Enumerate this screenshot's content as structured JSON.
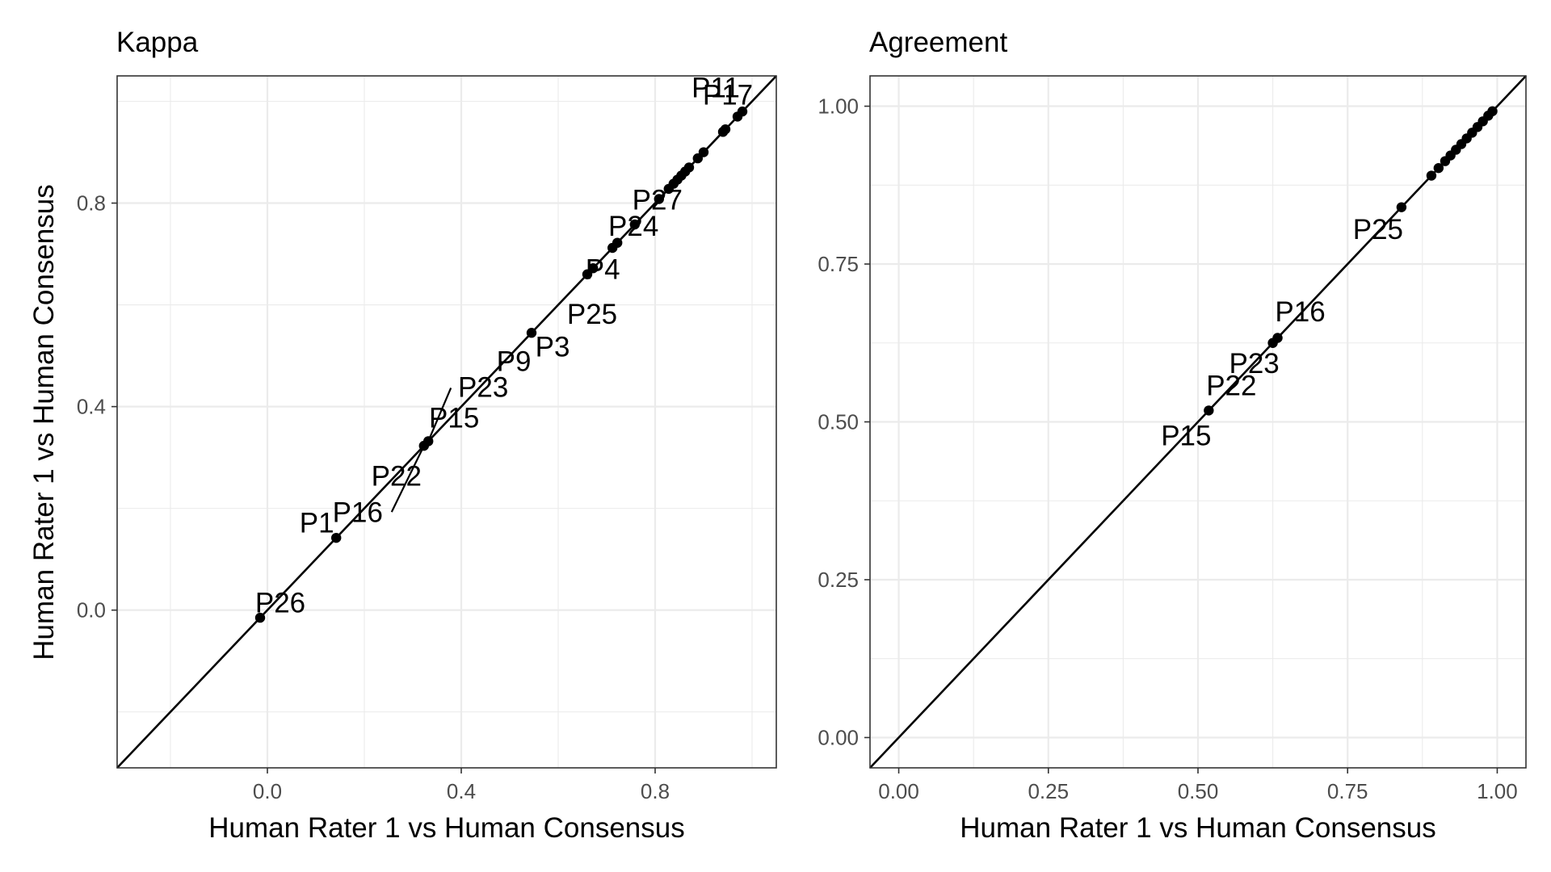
{
  "chart_data": [
    {
      "type": "scatter",
      "title": "Kappa",
      "xlabel": "Human Rater 1 vs Human Consensus",
      "ylabel": "Human Rater 1 vs Human Consensus",
      "xlim": [
        -0.31,
        1.05
      ],
      "ylim": [
        -0.31,
        1.05
      ],
      "xticks": [
        "0.0",
        "0.4",
        "0.8"
      ],
      "xtick_values": [
        0.0,
        0.4,
        0.8
      ],
      "yticks": [
        "0.0",
        "0.4",
        "0.8"
      ],
      "ytick_values": [
        0.0,
        0.4,
        0.8
      ],
      "grid": true,
      "reference_line": "y = x",
      "points": [
        {
          "x": -0.015,
          "y": -0.015
        },
        {
          "x": 0.142,
          "y": 0.142
        },
        {
          "x": 0.323,
          "y": 0.323
        },
        {
          "x": 0.332,
          "y": 0.332
        },
        {
          "x": 0.545,
          "y": 0.545
        },
        {
          "x": 0.66,
          "y": 0.66
        },
        {
          "x": 0.672,
          "y": 0.672
        },
        {
          "x": 0.712,
          "y": 0.712
        },
        {
          "x": 0.722,
          "y": 0.722
        },
        {
          "x": 0.758,
          "y": 0.758
        },
        {
          "x": 0.808,
          "y": 0.808
        },
        {
          "x": 0.828,
          "y": 0.828
        },
        {
          "x": 0.838,
          "y": 0.838
        },
        {
          "x": 0.846,
          "y": 0.846
        },
        {
          "x": 0.854,
          "y": 0.854
        },
        {
          "x": 0.862,
          "y": 0.862
        },
        {
          "x": 0.87,
          "y": 0.87
        },
        {
          "x": 0.888,
          "y": 0.888
        },
        {
          "x": 0.9,
          "y": 0.9
        },
        {
          "x": 0.94,
          "y": 0.94
        },
        {
          "x": 0.945,
          "y": 0.945
        },
        {
          "x": 0.97,
          "y": 0.97
        },
        {
          "x": 0.98,
          "y": 0.98
        }
      ],
      "labels": [
        {
          "text": "P26",
          "x": -0.015,
          "y": -0.015
        },
        {
          "text": "P1",
          "x": 0.142,
          "y": 0.142
        },
        {
          "text": "P16",
          "x": 0.323,
          "y": 0.323
        },
        {
          "text": "P22",
          "x": 0.323,
          "y": 0.323
        },
        {
          "text": "P15",
          "x": 0.332,
          "y": 0.332
        },
        {
          "text": "P23",
          "x": 0.332,
          "y": 0.332
        },
        {
          "text": "P9",
          "x": 0.545,
          "y": 0.545
        },
        {
          "text": "P3",
          "x": 0.545,
          "y": 0.545
        },
        {
          "text": "P25",
          "x": 0.66,
          "y": 0.66
        },
        {
          "text": "P4",
          "x": 0.672,
          "y": 0.672
        },
        {
          "text": "P24",
          "x": 0.722,
          "y": 0.722
        },
        {
          "text": "P27",
          "x": 0.758,
          "y": 0.758
        },
        {
          "text": "P11",
          "x": 0.97,
          "y": 0.97
        },
        {
          "text": "P17",
          "x": 0.98,
          "y": 0.98
        }
      ]
    },
    {
      "type": "scatter",
      "title": "Agreement",
      "xlabel": "Human Rater 1 vs Human Consensus",
      "ylabel": "",
      "xlim": [
        -0.048,
        1.048
      ],
      "ylim": [
        -0.048,
        1.048
      ],
      "xticks": [
        "0.00",
        "0.25",
        "0.50",
        "0.75",
        "1.00"
      ],
      "xtick_values": [
        0.0,
        0.25,
        0.5,
        0.75,
        1.0
      ],
      "yticks": [
        "0.00",
        "0.25",
        "0.50",
        "0.75",
        "1.00"
      ],
      "ytick_values": [
        0.0,
        0.25,
        0.5,
        0.75,
        1.0
      ],
      "grid": true,
      "reference_line": "y = x",
      "points": [
        {
          "x": 0.518,
          "y": 0.518
        },
        {
          "x": 0.625,
          "y": 0.625
        },
        {
          "x": 0.633,
          "y": 0.633
        },
        {
          "x": 0.84,
          "y": 0.84
        },
        {
          "x": 0.89,
          "y": 0.89
        },
        {
          "x": 0.902,
          "y": 0.902
        },
        {
          "x": 0.913,
          "y": 0.913
        },
        {
          "x": 0.922,
          "y": 0.922
        },
        {
          "x": 0.931,
          "y": 0.931
        },
        {
          "x": 0.94,
          "y": 0.94
        },
        {
          "x": 0.949,
          "y": 0.949
        },
        {
          "x": 0.958,
          "y": 0.958
        },
        {
          "x": 0.967,
          "y": 0.967
        },
        {
          "x": 0.976,
          "y": 0.976
        },
        {
          "x": 0.985,
          "y": 0.985
        },
        {
          "x": 0.992,
          "y": 0.992
        }
      ],
      "labels": [
        {
          "text": "P15",
          "x": 0.518,
          "y": 0.518
        },
        {
          "text": "P22",
          "x": 0.518,
          "y": 0.518
        },
        {
          "text": "P23",
          "x": 0.625,
          "y": 0.625
        },
        {
          "text": "P16",
          "x": 0.633,
          "y": 0.633
        },
        {
          "text": "P25",
          "x": 0.84,
          "y": 0.84
        }
      ]
    }
  ]
}
